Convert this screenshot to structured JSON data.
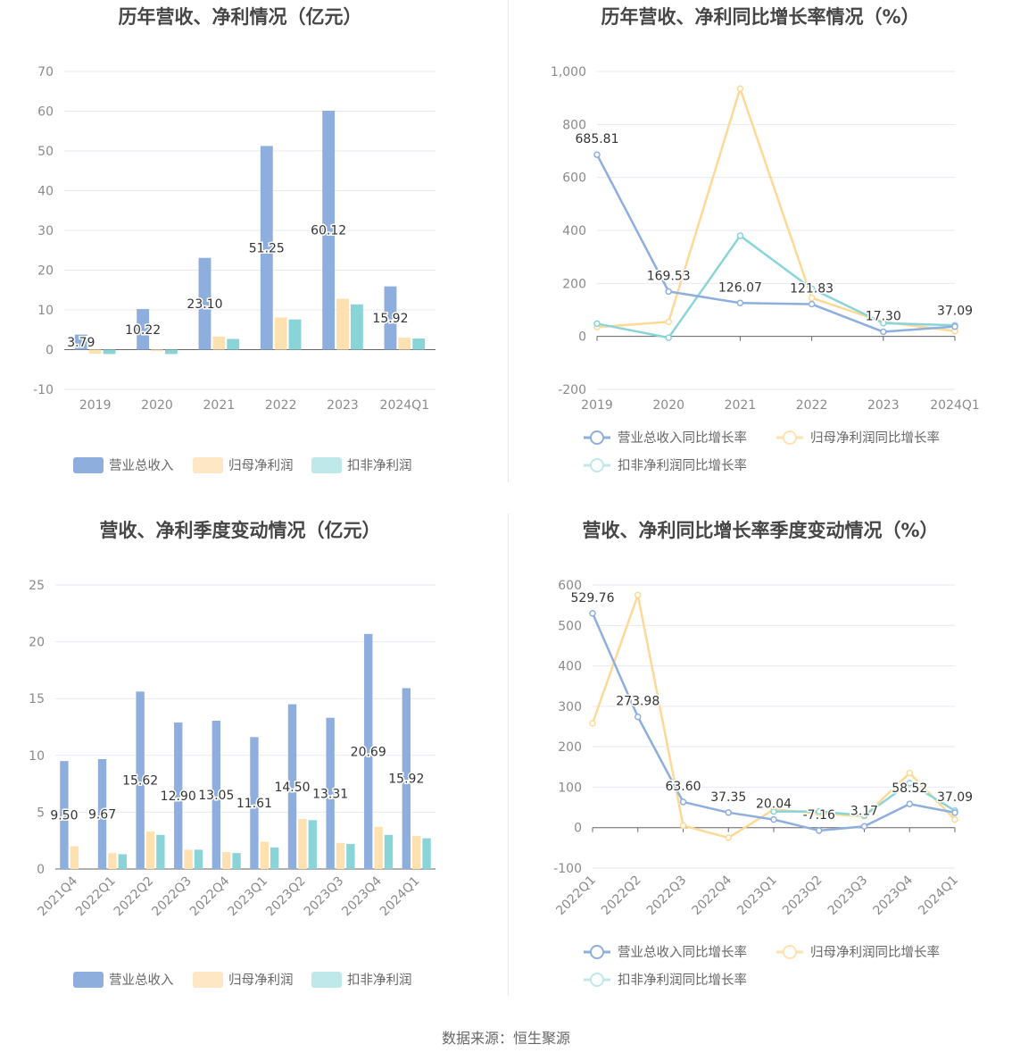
{
  "source": "数据来源：恒生聚源",
  "colors": {
    "revenue": "#8eaedd",
    "net_profit": "#fde1b0",
    "deducted": "#8ad4d8",
    "grid": "#e6e9f2",
    "axis": "#666666"
  },
  "chart_data": [
    {
      "type": "bar",
      "title": "历年营收、净利情况（亿元）",
      "categories": [
        "2019",
        "2020",
        "2021",
        "2022",
        "2023",
        "2024Q1"
      ],
      "ylim": [
        -10,
        70
      ],
      "yticks": [
        -10,
        0,
        10,
        20,
        30,
        40,
        50,
        60,
        70
      ],
      "grid": true,
      "legend_position": "bottom",
      "series": [
        {
          "name": "营业总收入",
          "values": [
            3.79,
            10.22,
            23.1,
            51.25,
            60.12,
            15.92
          ],
          "labels": [
            "3.79",
            "10.22",
            "23.10",
            "51.25",
            "60.12",
            "15.92"
          ]
        },
        {
          "name": "归母净利润",
          "values": [
            -1.0,
            -0.3,
            3.3,
            8.1,
            12.8,
            3.0
          ]
        },
        {
          "name": "扣非净利润",
          "values": [
            -1.1,
            -1.1,
            2.7,
            7.6,
            11.4,
            2.8
          ]
        }
      ]
    },
    {
      "type": "line",
      "title": "历年营收、净利同比增长率情况（%）",
      "categories": [
        "2019",
        "2020",
        "2021",
        "2022",
        "2023",
        "2024Q1"
      ],
      "ylim": [
        -200,
        1000
      ],
      "yticks": [
        -200,
        0,
        200,
        400,
        600,
        800,
        1000
      ],
      "ytick_labels": [
        "-200",
        "0",
        "200",
        "400",
        "600",
        "800",
        "1,000"
      ],
      "grid": true,
      "legend_position": "bottom",
      "series": [
        {
          "name": "营业总收入同比增长率",
          "values": [
            685.81,
            169.53,
            126.07,
            121.83,
            17.3,
            37.09
          ],
          "labels": [
            "685.81",
            "169.53",
            "126.07",
            "121.83",
            "17.30",
            "37.09"
          ]
        },
        {
          "name": "归母净利润同比增长率",
          "values": [
            35,
            55,
            935,
            145,
            55,
            20
          ]
        },
        {
          "name": "扣非净利润同比增长率",
          "values": [
            48,
            -5,
            380,
            180,
            50,
            42
          ]
        }
      ]
    },
    {
      "type": "bar",
      "title": "营收、净利季度变动情况（亿元）",
      "categories": [
        "2021Q4",
        "2022Q1",
        "2022Q2",
        "2022Q3",
        "2022Q4",
        "2023Q1",
        "2023Q2",
        "2023Q3",
        "2023Q4",
        "2024Q1"
      ],
      "ylim": [
        0,
        25
      ],
      "yticks": [
        0,
        5,
        10,
        15,
        20,
        25
      ],
      "grid": true,
      "legend_position": "bottom",
      "series": [
        {
          "name": "营业总收入",
          "values": [
            9.5,
            9.67,
            15.62,
            12.9,
            13.05,
            11.61,
            14.5,
            13.31,
            20.69,
            15.92
          ],
          "labels": [
            "9.50",
            "9.67",
            "15.62",
            "12.90",
            "13.05",
            "11.61",
            "14.50",
            "13.31",
            "20.69",
            "15.92"
          ]
        },
        {
          "name": "归母净利润",
          "values": [
            2.0,
            1.4,
            3.3,
            1.7,
            1.5,
            2.4,
            4.4,
            2.3,
            3.7,
            2.9
          ]
        },
        {
          "name": "扣非净利润",
          "values": [
            0,
            1.3,
            3.0,
            1.7,
            1.4,
            1.9,
            4.3,
            2.2,
            3.0,
            2.7
          ]
        }
      ]
    },
    {
      "type": "line",
      "title": "营收、净利同比增长率季度变动情况（%）",
      "categories": [
        "2022Q1",
        "2022Q2",
        "2022Q3",
        "2022Q4",
        "2023Q1",
        "2023Q2",
        "2023Q3",
        "2023Q4",
        "2024Q1"
      ],
      "ylim": [
        -100,
        600
      ],
      "yticks": [
        -100,
        0,
        100,
        200,
        300,
        400,
        500,
        600
      ],
      "grid": true,
      "legend_position": "bottom",
      "series": [
        {
          "name": "营业总收入同比增长率",
          "values": [
            529.76,
            273.98,
            63.6,
            37.35,
            20.04,
            -7.16,
            3.17,
            58.52,
            37.09
          ],
          "labels": [
            "529.76",
            "273.98",
            "63.60",
            "37.35",
            "20.04",
            "-7.16",
            "3.17",
            "58.52",
            "37.09"
          ]
        },
        {
          "name": "归母净利润同比增长率",
          "values": [
            258,
            575,
            5,
            -25,
            45,
            35,
            28,
            135,
            20
          ]
        },
        {
          "name": "扣非净利润同比增长率",
          "values": [
            null,
            null,
            null,
            null,
            40,
            40,
            30,
            110,
            42
          ]
        }
      ]
    }
  ]
}
